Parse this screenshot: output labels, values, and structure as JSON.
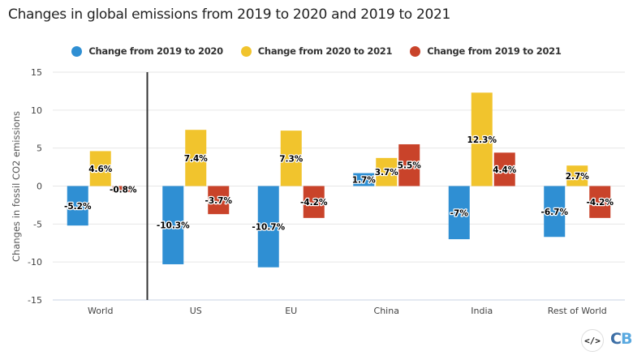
{
  "title": "Changes in global emissions from 2019 to 2020 and 2019 to 2021",
  "legend": [
    {
      "label": "Change from 2019 to 2020",
      "color": "#2f8fd3"
    },
    {
      "label": "Change from 2020 to 2021",
      "color": "#f1c42d"
    },
    {
      "label": "Change from 2019 to 2021",
      "color": "#c9432a"
    }
  ],
  "footer": {
    "embed_icon": "</>",
    "logo_c": "C",
    "logo_b": "B"
  },
  "chart_data": {
    "type": "bar",
    "title": "Changes in global emissions from 2019 to 2020 and 2019 to 2021",
    "xlabel": "",
    "ylabel": "Changes in fossil CO2 emissions",
    "ylim": [
      -15,
      15
    ],
    "yticks": [
      15,
      10,
      5,
      0,
      -5,
      -10,
      -15
    ],
    "grid": true,
    "legend_position": "top-center",
    "categories": [
      "World",
      "US",
      "EU",
      "China",
      "India",
      "Rest of World"
    ],
    "separator_after_category": "World",
    "series": [
      {
        "name": "Change from 2019 to 2020",
        "color": "#2f8fd3",
        "values": [
          -5.2,
          -10.3,
          -10.7,
          1.7,
          -7.0,
          -6.7
        ],
        "labels": [
          "-5.2%",
          "-10.3%",
          "-10.7%",
          "1.7%",
          "-7%",
          "-6.7%"
        ]
      },
      {
        "name": "Change from 2020 to 2021",
        "color": "#f1c42d",
        "values": [
          4.6,
          7.4,
          7.3,
          3.7,
          12.3,
          2.7
        ],
        "labels": [
          "4.6%",
          "7.4%",
          "7.3%",
          "3.7%",
          "12.3%",
          "2.7%"
        ]
      },
      {
        "name": "Change from 2019 to 2021",
        "color": "#c9432a",
        "values": [
          -0.8,
          -3.7,
          -4.2,
          5.5,
          4.4,
          -4.2
        ],
        "labels": [
          "-0.8%",
          "-3.7%",
          "-4.2%",
          "5.5%",
          "4.4%",
          "-4.2%"
        ]
      }
    ]
  }
}
